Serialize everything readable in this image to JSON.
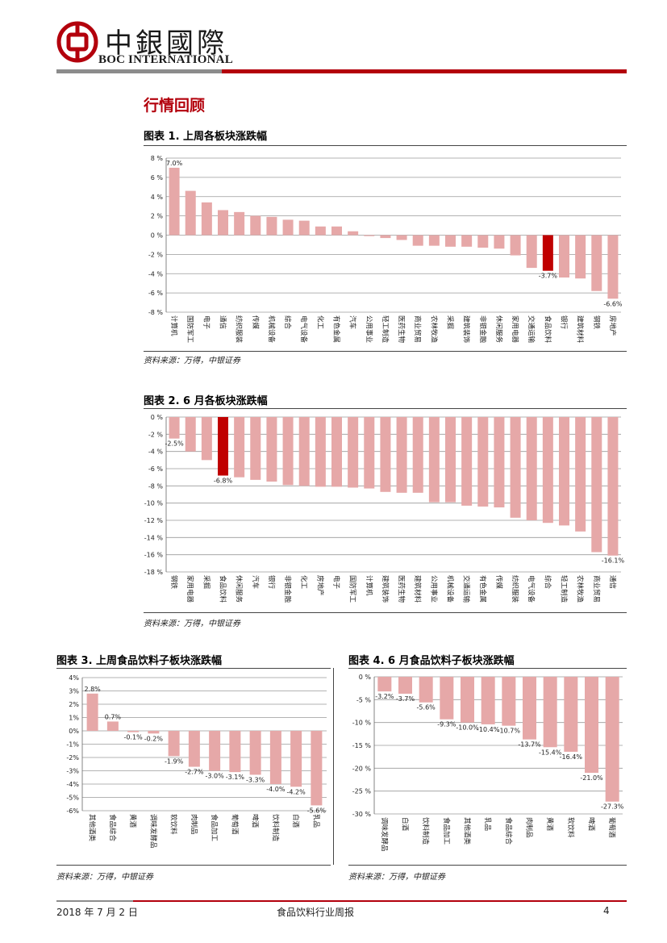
{
  "header": {
    "logo_cn": "中銀國際",
    "logo_en": "BOC INTERNATIONAL"
  },
  "section_title": "行情回顾",
  "figures": [
    {
      "title": "图表 1. 上周各板块涨跌幅",
      "source": "资料来源：万得，中银证券"
    },
    {
      "title": "图表 2. 6 月各板块涨跌幅",
      "source": "资料来源：万得，中银证券"
    },
    {
      "title": "图表 3. 上周食品饮料子板块涨跌幅",
      "source": "资料来源：万得，中银证券"
    },
    {
      "title": "图表 4. 6 月食品饮料子板块涨跌幅",
      "source": "资料来源：万得，中银证券"
    }
  ],
  "footer": {
    "date": "2018 年 7 月 2 日",
    "title": "食品饮料行业周报",
    "page": "4"
  },
  "colors": {
    "bar": "#e6a8a8",
    "highlight": "#c00000",
    "brand_red": "#b3000c"
  },
  "chart_data": [
    {
      "type": "bar",
      "categories": [
        "计算机",
        "国防军工",
        "电子",
        "通信",
        "纺织服装",
        "传媒",
        "机械设备",
        "综合",
        "电气设备",
        "化工",
        "有色金属",
        "汽车",
        "公用事业",
        "轻工制造",
        "医药生物",
        "商业贸易",
        "农林牧渔",
        "采掘",
        "建筑装饰",
        "非银金融",
        "休闲服务",
        "家用电器",
        "交通运输",
        "食品饮料",
        "银行",
        "建筑材料",
        "钢铁",
        "房地产"
      ],
      "values": [
        7.0,
        4.6,
        3.4,
        2.6,
        2.4,
        2.0,
        1.9,
        1.6,
        1.5,
        0.9,
        0.9,
        0.4,
        -0.1,
        -0.3,
        -0.5,
        -1.1,
        -1.1,
        -1.2,
        -1.2,
        -1.3,
        -1.4,
        -2.1,
        -3.4,
        -3.7,
        -4.4,
        -4.5,
        -5.8,
        -6.6
      ],
      "data_labels": {
        "0": "7.0%",
        "23": "-3.7%",
        "27": "-6.6%"
      },
      "highlight_index": 23,
      "ylim": [
        -8,
        8
      ],
      "yticks": [
        8,
        6,
        4,
        2,
        0,
        -2,
        -4,
        -6,
        -8
      ],
      "ytick_labels": [
        "8 %",
        "6 %",
        "4 %",
        "2 %",
        "0 %",
        "-2 %",
        "-4 %",
        "-6 %",
        "-8 %"
      ],
      "grid": true
    },
    {
      "type": "bar",
      "categories": [
        "钢铁",
        "家用电器",
        "采掘",
        "食品饮料",
        "休闲服务",
        "汽车",
        "银行",
        "非银金融",
        "化工",
        "房地产",
        "电子",
        "国防军工",
        "计算机",
        "建筑装饰",
        "医药生物",
        "建筑材料",
        "公用事业",
        "机械设备",
        "交通运输",
        "有色金属",
        "传媒",
        "纺织服装",
        "电气设备",
        "综合",
        "轻工制造",
        "农林牧渔",
        "商业贸易",
        "通信"
      ],
      "values": [
        -2.5,
        -4.0,
        -5.0,
        -6.8,
        -7.0,
        -7.3,
        -7.5,
        -7.9,
        -8.0,
        -8.1,
        -8.1,
        -8.2,
        -8.3,
        -8.7,
        -8.8,
        -8.8,
        -9.9,
        -9.9,
        -10.3,
        -10.4,
        -10.5,
        -11.7,
        -12.0,
        -12.3,
        -12.6,
        -13.3,
        -15.7,
        -16.1
      ],
      "data_labels": {
        "0": "-2.5%",
        "3": "-6.8%",
        "27": "-16.1%"
      },
      "highlight_index": 3,
      "ylim": [
        -18,
        0
      ],
      "yticks": [
        0,
        -2,
        -4,
        -6,
        -8,
        -10,
        -12,
        -14,
        -16,
        -18
      ],
      "ytick_labels": [
        "0 %",
        "-2 %",
        "-4 %",
        "-6 %",
        "-8 %",
        "-10 %",
        "-12 %",
        "-14 %",
        "-16 %",
        "-18 %"
      ],
      "grid": true
    },
    {
      "type": "bar",
      "categories": [
        "其他酒类",
        "食品综合",
        "黄酒",
        "调味发酵品",
        "软饮料",
        "肉制品",
        "食品加工",
        "葡萄酒",
        "啤酒",
        "饮料制造",
        "白酒",
        "乳品"
      ],
      "values": [
        2.8,
        0.7,
        -0.1,
        -0.2,
        -1.9,
        -2.7,
        -3.0,
        -3.1,
        -3.3,
        -4.0,
        -4.2,
        -5.6
      ],
      "data_labels": [
        "2.8%",
        "0.7%",
        "-0.1%",
        "-0.2%",
        "-1.9%",
        "-2.7%",
        "-3.0%",
        "-3.1%",
        "-3.3%",
        "-4.0%",
        "-4.2%",
        "-5.6%"
      ],
      "ylim": [
        -6,
        4
      ],
      "yticks": [
        4,
        3,
        2,
        1,
        0,
        -1,
        -2,
        -3,
        -4,
        -5,
        -6
      ],
      "ytick_labels": [
        "4%",
        "3%",
        "2%",
        "1%",
        "0%",
        "-1%",
        "-2%",
        "-3%",
        "-4%",
        "-5%",
        "-6%"
      ],
      "grid": true
    },
    {
      "type": "bar",
      "categories": [
        "调味发酵品",
        "白酒",
        "饮料制造",
        "食品加工",
        "其他酒类",
        "乳品",
        "食品综合",
        "肉制品",
        "黄酒",
        "软饮料",
        "啤酒",
        "葡萄酒"
      ],
      "values": [
        -3.2,
        -3.7,
        -5.6,
        -9.3,
        -10.0,
        -10.4,
        -10.7,
        -13.7,
        -15.4,
        -16.4,
        -21.0,
        -27.3
      ],
      "data_labels": [
        "-3.2%",
        "-3.7%",
        "-5.6%",
        "-9.3%",
        "-10.0%",
        "-10.4%",
        "-10.7%",
        "-13.7%",
        "-15.4%",
        "-16.4%",
        "-21.0%",
        "-27.3%"
      ],
      "ylim": [
        -30,
        0
      ],
      "yticks": [
        0,
        -5,
        -10,
        -15,
        -20,
        -25,
        -30
      ],
      "ytick_labels": [
        "0 %",
        "-5 %",
        "-10 %",
        "-15 %",
        "-20 %",
        "-25 %",
        "-30 %"
      ],
      "grid": true
    }
  ]
}
